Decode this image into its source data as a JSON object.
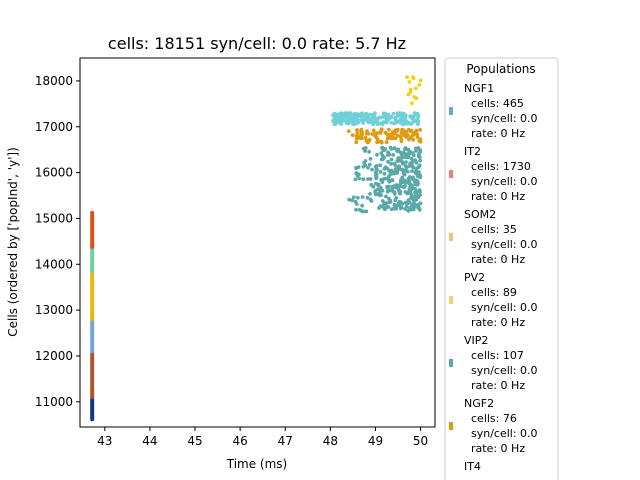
{
  "chart_data": {
    "type": "scatter",
    "title": "cells: 18151   syn/cell: 0.0   rate: 5.7 Hz",
    "xlabel": "Time (ms)",
    "ylabel": "Cells (ordered by ['popInd', 'y'])",
    "xlim": [
      42.45,
      50.32
    ],
    "ylim": [
      18500,
      10450
    ],
    "y_inverted": true,
    "xticks": [
      43,
      44,
      45,
      46,
      47,
      48,
      49,
      50
    ],
    "yticks": [
      11000,
      12000,
      13000,
      14000,
      15000,
      16000,
      17000,
      18000
    ],
    "grid": false,
    "legend": {
      "title": "Populations",
      "placement": "right, outside plot area",
      "entries": [
        {
          "name": "NGF1",
          "cells": "cells: 465",
          "syn": "syn/cell: 0.0",
          "rate": "rate: 0 Hz",
          "color": "#6fa8c4"
        },
        {
          "name": "IT2",
          "cells": "cells: 1730",
          "syn": "syn/cell: 0.0",
          "rate": "rate: 0 Hz",
          "color": "#f07a84"
        },
        {
          "name": "SOM2",
          "cells": "cells: 35",
          "syn": "syn/cell: 0.0",
          "rate": "rate: 0 Hz",
          "color": "#e8c77a"
        },
        {
          "name": "PV2",
          "cells": "cells: 89",
          "syn": "syn/cell: 0.0",
          "rate": "rate: 0 Hz",
          "color": "#e9d775"
        },
        {
          "name": "VIP2",
          "cells": "cells: 107",
          "syn": "syn/cell: 0.0",
          "rate": "rate: 0 Hz",
          "color": "#5ba8a8"
        },
        {
          "name": "NGF2",
          "cells": "cells: 76",
          "syn": "syn/cell: 0.0",
          "rate": "rate: 0 Hz",
          "color": "#e09a10"
        },
        {
          "name": "IT4",
          "cells": "",
          "syn": "",
          "rate": "",
          "color": ""
        }
      ]
    },
    "colors": {
      "teal": "#5ba8a8",
      "orange": "#e09a10",
      "cyan": "#6fd0d8",
      "yellow": "#f5d012",
      "navy": "#0a3a7a",
      "brown": "#a85a2a",
      "lightblue": "#6fa8d8",
      "gold": "#e8b80a",
      "green": "#6fd0a0",
      "red": "#e05010"
    },
    "column_spikes": {
      "time": 42.72,
      "segments": [
        {
          "y0": 10620,
          "y1": 11100,
          "color": "#0a3a7a"
        },
        {
          "y0": 11100,
          "y1": 12100,
          "color": "#a85a2a"
        },
        {
          "y0": 12100,
          "y1": 12800,
          "color": "#6fa8d8"
        },
        {
          "y0": 12800,
          "y1": 13850,
          "color": "#e8b80a"
        },
        {
          "y0": 13850,
          "y1": 14380,
          "color": "#6fd0a0"
        },
        {
          "y0": 14380,
          "y1": 15120,
          "color": "#e05010"
        }
      ]
    },
    "spike_clusters": [
      {
        "color": "#5ba8a8",
        "x_range": [
          48.4,
          50.0
        ],
        "y_range": [
          15150,
          16550
        ],
        "count": 340,
        "x_skew": 1.7,
        "seed": 11
      },
      {
        "color": "#e09a10",
        "x_range": [
          48.4,
          50.0
        ],
        "y_range": [
          16650,
          16950
        ],
        "count": 95,
        "x_skew": 1.5,
        "seed": 23
      },
      {
        "color": "#6fd0d8",
        "x_range": [
          48.05,
          50.0
        ],
        "y_range": [
          17050,
          17300
        ],
        "count": 230,
        "x_skew": 0.8,
        "seed": 37
      },
      {
        "color": "#f5d012",
        "x_range": [
          49.6,
          50.0
        ],
        "y_range": [
          17450,
          18150
        ],
        "count": 13,
        "x_skew": 1.0,
        "seed": 51
      }
    ]
  }
}
